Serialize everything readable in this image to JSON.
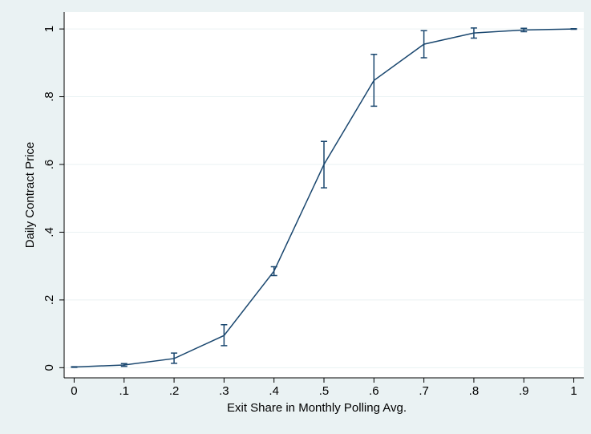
{
  "chart_data": {
    "type": "line",
    "x_label": "Exit Share in Monthly Polling Avg.",
    "y_label": "Daily Contract Price",
    "x": [
      0,
      0.1,
      0.2,
      0.3,
      0.4,
      0.5,
      0.6,
      0.7,
      0.8,
      0.9,
      1
    ],
    "series": [
      {
        "color": "#1a476f",
        "values": [
          0.002,
          0.008,
          0.027,
          0.095,
          0.285,
          0.6,
          0.848,
          0.955,
          0.988,
          0.997,
          1.0
        ],
        "lower": [
          0.001,
          0.004,
          0.013,
          0.065,
          0.272,
          0.531,
          0.772,
          0.915,
          0.973,
          0.992,
          0.999
        ],
        "upper": [
          0.003,
          0.012,
          0.043,
          0.127,
          0.298,
          0.668,
          0.925,
          0.995,
          1.003,
          1.002,
          1.001
        ]
      }
    ],
    "xlim": [
      -0.02,
      1.02
    ],
    "ylim": [
      -0.03,
      1.05
    ],
    "xticks": [
      0,
      {
        "value": 0.1,
        "label": ".1"
      },
      {
        "value": 0.2,
        "label": ".2"
      },
      {
        "value": 0.3,
        "label": ".3"
      },
      {
        "value": 0.4,
        "label": ".4"
      },
      {
        "value": 0.5,
        "label": ".5"
      },
      {
        "value": 0.6,
        "label": ".6"
      },
      {
        "value": 0.7,
        "label": ".7"
      },
      {
        "value": 0.8,
        "label": ".8"
      },
      {
        "value": 0.9,
        "label": ".9"
      },
      1
    ],
    "yticks": [
      0,
      {
        "value": 0.2,
        "label": ".2"
      },
      {
        "value": 0.4,
        "label": ".4"
      },
      {
        "value": 0.6,
        "label": ".6"
      },
      {
        "value": 0.8,
        "label": ".8"
      },
      1
    ],
    "grid": true
  }
}
